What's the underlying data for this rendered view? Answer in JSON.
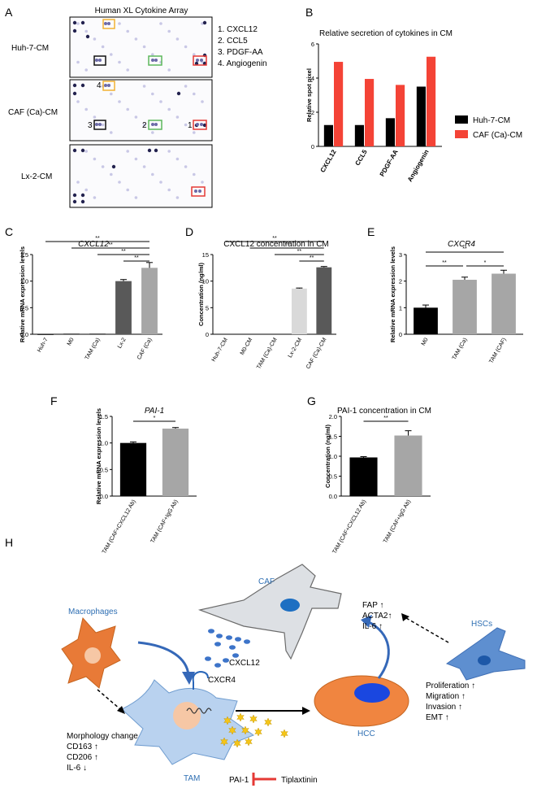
{
  "panels": {
    "A": "A",
    "B": "B",
    "C": "C",
    "D": "D",
    "E": "E",
    "F": "F",
    "G": "G",
    "H": "H"
  },
  "panel_a": {
    "title": "Human XL Cytokine Array",
    "rows": [
      "Huh-7-CM",
      "CAF (Ca)-CM",
      "Lx-2-CM"
    ],
    "legend": [
      "1. CXCL12",
      "2. CCL5",
      "3. PDGF-AA",
      "4. Angiogenin"
    ],
    "markers": [
      "4",
      "3",
      "2",
      "1"
    ],
    "box_colors": {
      "angiogenin": "#f2b233",
      "pdgf": "#111111",
      "ccl5": "#5cb85c",
      "cxcl12": "#e53935"
    }
  },
  "chart_data": [
    {
      "panel": "B",
      "type": "bar",
      "title": "Relative secretion of cytokines in CM",
      "ylabel": "Relative spot pixel",
      "categories": [
        "CXCL12",
        "CCL5",
        "PDGF-AA",
        "Angiogenin"
      ],
      "series": [
        {
          "name": "Huh-7-CM",
          "color": "#000000",
          "values": [
            1.25,
            1.25,
            1.65,
            3.5
          ]
        },
        {
          "name": "CAF (Ca)-CM",
          "color": "#f44336",
          "values": [
            4.95,
            3.95,
            3.6,
            5.25
          ]
        }
      ],
      "ylim": [
        0,
        6
      ],
      "yticks": [
        "0",
        "2",
        "4",
        "6"
      ]
    },
    {
      "panel": "C",
      "type": "bar",
      "title": "CXCL12",
      "ylabel": "Relative mRNA expression levels",
      "categories": [
        "Huh-7",
        "M0",
        "TAM (Ca)",
        "Lx-2",
        "CAF (Ca)"
      ],
      "values": [
        0.0,
        0.01,
        0.01,
        1.0,
        1.25
      ],
      "errors": [
        0,
        0,
        0,
        0.03,
        0.1
      ],
      "colors": [
        "#000000",
        "#000000",
        "#000000",
        "#595959",
        "#a6a6a6"
      ],
      "ylim": [
        0,
        1.5
      ],
      "yticks": [
        "0.0",
        "0.5",
        "1.0",
        "1.5"
      ],
      "significance": [
        "**",
        "**",
        "**",
        "**"
      ]
    },
    {
      "panel": "D",
      "type": "bar",
      "title": "CXCL12 concentration in CM",
      "ylabel": "Concentration (ng/ml)",
      "categories": [
        "Huh-7-CM",
        "M0-CM",
        "TAM (Ca)-CM",
        "Lx-2-CM",
        "CAF (Ca)-CM"
      ],
      "values": [
        0.05,
        0.05,
        0.05,
        8.6,
        12.6
      ],
      "errors": [
        0,
        0,
        0,
        0.1,
        0.15
      ],
      "colors": [
        "#000000",
        "#000000",
        "#000000",
        "#d9d9d9",
        "#595959"
      ],
      "ylim": [
        0,
        15
      ],
      "yticks": [
        "0",
        "5",
        "10",
        "15"
      ],
      "significance": [
        "**",
        "**",
        "**",
        "**"
      ]
    },
    {
      "panel": "E",
      "type": "bar",
      "title": "CXCR4",
      "ylabel": "Relative mRNA expression levels",
      "categories": [
        "M0",
        "TAM (Ca)",
        "TAM (CAF)"
      ],
      "values": [
        1.0,
        2.05,
        2.28
      ],
      "errors": [
        0.1,
        0.1,
        0.13
      ],
      "colors": [
        "#000000",
        "#a6a6a6",
        "#a6a6a6"
      ],
      "ylim": [
        0,
        3
      ],
      "yticks": [
        "0",
        "1",
        "2",
        "3"
      ],
      "significance": [
        "**",
        "*",
        "**"
      ]
    },
    {
      "panel": "F",
      "type": "bar",
      "title": "PAI-1",
      "ylabel": "Relative mRNA expression levels",
      "categories": [
        "TAM (CAF+CXCL12 Ab)",
        "TAM (CAF+IgG Ab)"
      ],
      "values": [
        1.0,
        1.27
      ],
      "errors": [
        0.02,
        0.02
      ],
      "colors": [
        "#000000",
        "#a6a6a6"
      ],
      "ylim": [
        0,
        1.5
      ],
      "yticks": [
        "0.0",
        "0.5",
        "1.0",
        "1.5"
      ],
      "significance": [
        "*"
      ]
    },
    {
      "panel": "G",
      "type": "bar",
      "title": "PAI-1 concentration in CM",
      "ylabel": "Concentration (ng/ml)",
      "categories": [
        "TAM (CAF+CXCL12 Ab)",
        "TAM (CAF+IgG Ab)"
      ],
      "values": [
        0.97,
        1.52
      ],
      "errors": [
        0.02,
        0.12
      ],
      "colors": [
        "#000000",
        "#a6a6a6"
      ],
      "ylim": [
        0,
        2.0
      ],
      "yticks": [
        "0.0",
        "0.5",
        "1.0",
        "1.5",
        "2.0"
      ],
      "significance": [
        "**"
      ]
    }
  ],
  "panel_h": {
    "caf": "CAF",
    "macrophages": "Macrophages",
    "hscs": "HSCs",
    "tam": "TAM",
    "hcc": "HCC",
    "cxcl12": "CXCL12",
    "cxcr4": "CXCR4",
    "pai1": "PAI-1",
    "tiplaxtinin": "Tiplaxtinin",
    "caf_markers": [
      "FAP ↑",
      "ACTA2↑",
      "IL-6 ↑"
    ],
    "tam_changes": [
      "Morphology change",
      "CD163 ↑",
      "CD206 ↑",
      "IL-6 ↓"
    ],
    "hcc_effects": [
      "Proliferation ↑",
      "Migration ↑",
      "Invasion ↑",
      "EMT ↑"
    ]
  }
}
